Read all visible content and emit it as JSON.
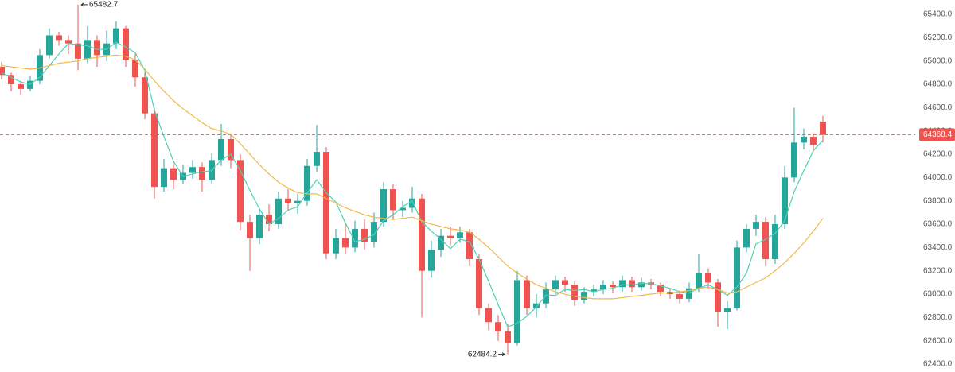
{
  "chart_data": {
    "type": "candlestick",
    "open": [
      64950,
      64880,
      64800,
      64760,
      64830,
      65050,
      65220,
      65180,
      65150,
      65020,
      65180,
      65050,
      65150,
      65280,
      65010,
      64860,
      64550,
      63920,
      64080,
      63980,
      64040,
      64090,
      63980,
      64150,
      64330,
      64150,
      63620,
      63480,
      63680,
      63600,
      63820,
      63780,
      63800,
      64100,
      64220,
      63350,
      63480,
      63400,
      63560,
      63450,
      63620,
      63900,
      63720,
      63740,
      63820,
      63200,
      63380,
      63500,
      63480,
      63530,
      63300,
      62880,
      62760,
      62680,
      62580,
      63120,
      62880,
      62920,
      63040,
      63120,
      63080,
      62950,
      63020,
      63040,
      63080,
      63060,
      63120,
      63060,
      63100,
      63080,
      63020,
      63000,
      62960,
      63050,
      63180,
      63100,
      62850,
      62880,
      63400,
      63560,
      63620,
      63300,
      63600,
      64000,
      64300,
      64350,
      64480
    ],
    "high": [
      64990,
      64900,
      64830,
      64870,
      65100,
      65280,
      65250,
      65220,
      65482.7,
      65300,
      65220,
      65260,
      65340,
      65300,
      65060,
      64900,
      64600,
      64160,
      64120,
      64110,
      64150,
      64130,
      64210,
      64460,
      64380,
      64200,
      63680,
      63740,
      63770,
      63880,
      63900,
      63860,
      64160,
      64450,
      64260,
      63560,
      63600,
      63630,
      63640,
      63700,
      63960,
      63940,
      63800,
      63920,
      63860,
      63460,
      63560,
      63580,
      63580,
      63560,
      63340,
      62920,
      62820,
      62740,
      63200,
      63160,
      63000,
      63100,
      63160,
      63150,
      63110,
      63060,
      63080,
      63120,
      63110,
      63160,
      63150,
      63140,
      63130,
      63100,
      63050,
      63030,
      63100,
      63340,
      63220,
      63130,
      62940,
      63460,
      63600,
      63680,
      63660,
      63680,
      64100,
      64600,
      64420,
      64380,
      64530
    ],
    "low": [
      64840,
      64740,
      64710,
      64740,
      64800,
      65020,
      65130,
      65060,
      64920,
      64980,
      64950,
      65000,
      65100,
      64950,
      64780,
      64500,
      63820,
      63880,
      63900,
      63940,
      63990,
      63880,
      63950,
      64100,
      64080,
      63550,
      63200,
      63430,
      63540,
      63560,
      63720,
      63690,
      63760,
      64050,
      63300,
      63300,
      63340,
      63360,
      63380,
      63400,
      63580,
      63640,
      63660,
      63700,
      62800,
      63140,
      63320,
      63420,
      63440,
      63240,
      62820,
      62690,
      62600,
      62484.2,
      62560,
      62820,
      62800,
      62880,
      63000,
      63020,
      62900,
      62920,
      62980,
      63000,
      63010,
      63020,
      63020,
      63030,
      63040,
      62980,
      62960,
      62920,
      62930,
      63020,
      63040,
      62720,
      62700,
      62860,
      63360,
      63500,
      63240,
      63260,
      63560,
      63960,
      64240,
      64220,
      64300
    ],
    "close": [
      64880,
      64800,
      64760,
      64830,
      65050,
      65220,
      65180,
      65150,
      65020,
      65180,
      65050,
      65150,
      65280,
      65010,
      64860,
      64550,
      63920,
      64080,
      63980,
      64040,
      64090,
      63980,
      64150,
      64330,
      64150,
      63620,
      63480,
      63680,
      63600,
      63820,
      63780,
      63800,
      64100,
      64220,
      63350,
      63480,
      63400,
      63560,
      63450,
      63620,
      63900,
      63720,
      63740,
      63820,
      63200,
      63380,
      63500,
      63480,
      63530,
      63300,
      62880,
      62760,
      62680,
      62580,
      63120,
      62880,
      62920,
      63040,
      63120,
      63080,
      62950,
      63020,
      63040,
      63080,
      63060,
      63120,
      63060,
      63100,
      63080,
      63020,
      63000,
      62960,
      63050,
      63180,
      63100,
      62850,
      62880,
      63400,
      63560,
      63620,
      63300,
      63600,
      64000,
      64300,
      64350,
      64280,
      64368.4
    ],
    "up_color": "#26a69a",
    "down_color": "#ef5350",
    "moving_averages": [
      {
        "color": "#4fd1b5",
        "values": [
          64900,
          64860,
          64820,
          64800,
          64860,
          64960,
          65060,
          65150,
          65140,
          65130,
          65100,
          65100,
          65160,
          65120,
          65070,
          64920,
          64580,
          64350,
          64140,
          64010,
          64030,
          64050,
          64060,
          64150,
          64200,
          64060,
          63890,
          63730,
          63600,
          63650,
          63720,
          63750,
          63870,
          63980,
          63870,
          63790,
          63610,
          63450,
          63470,
          63510,
          63630,
          63680,
          63750,
          63800,
          63620,
          63540,
          63470,
          63390,
          63470,
          63450,
          63300,
          63110,
          62910,
          62720,
          62750,
          62810,
          62890,
          62990,
          62990,
          63040,
          63030,
          63040,
          63020,
          63040,
          63050,
          63080,
          63080,
          63090,
          63090,
          63070,
          63050,
          63020,
          63010,
          63050,
          63080,
          63040,
          62990,
          63060,
          63180,
          63430,
          63470,
          63520,
          63630,
          63880,
          64060,
          64230,
          64320
        ]
      },
      {
        "color": "#f2b84b",
        "values": [
          64960,
          64950,
          64940,
          64930,
          64940,
          64960,
          64980,
          64990,
          65000,
          65020,
          65030,
          65040,
          65050,
          65040,
          65010,
          64930,
          64830,
          64740,
          64660,
          64590,
          64530,
          64470,
          64420,
          64400,
          64370,
          64290,
          64200,
          64110,
          64030,
          63960,
          63910,
          63870,
          63860,
          63860,
          63820,
          63780,
          63740,
          63710,
          63680,
          63660,
          63650,
          63640,
          63650,
          63660,
          63630,
          63600,
          63580,
          63560,
          63550,
          63530,
          63470,
          63400,
          63320,
          63240,
          63180,
          63130,
          63080,
          63050,
          63020,
          63000,
          62980,
          62970,
          62960,
          62960,
          62960,
          62970,
          62980,
          62990,
          63000,
          63010,
          63010,
          63020,
          63030,
          63050,
          63060,
          63040,
          63010,
          63020,
          63060,
          63100,
          63140,
          63200,
          63270,
          63350,
          63440,
          63540,
          63650
        ]
      }
    ],
    "ylim": [
      62332,
      65523
    ],
    "yticks": [
      {
        "value": 62400,
        "label": "62400.0"
      },
      {
        "value": 62600,
        "label": "62600.0"
      },
      {
        "value": 62800,
        "label": "62800.0"
      },
      {
        "value": 63000,
        "label": "63000.0"
      },
      {
        "value": 63200,
        "label": "63200.0"
      },
      {
        "value": 63400,
        "label": "63400.0"
      },
      {
        "value": 63600,
        "label": "63600.0"
      },
      {
        "value": 63800,
        "label": "63800.0"
      },
      {
        "value": 64000,
        "label": "64000.0"
      },
      {
        "value": 64200,
        "label": "64200.0"
      },
      {
        "value": 64400,
        "label": "64400.0"
      },
      {
        "value": 64600,
        "label": "64600.0"
      },
      {
        "value": 64800,
        "label": "64800.0"
      },
      {
        "value": 65000,
        "label": "65000.0"
      },
      {
        "value": 65200,
        "label": "65200.0"
      },
      {
        "value": 65400,
        "label": "65400.0"
      }
    ],
    "price_line_color": "#ef5350"
  }
}
